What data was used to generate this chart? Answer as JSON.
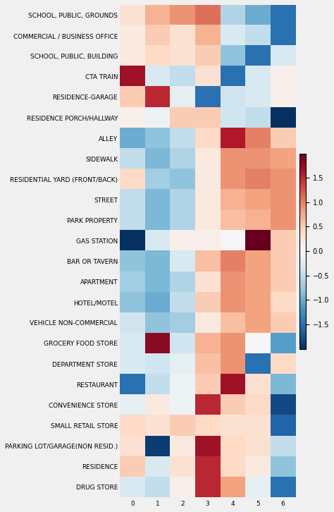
{
  "rows": [
    "SCHOOL, PUBLIC, GROUNDS",
    "COMMERCIAL / BUSINESS OFFICE",
    "SCHOOL, PUBLIC, BUILDING",
    "CTA TRAIN",
    "RESIDENCE-GARAGE",
    "RESIDENCE PORCH/HALLWAY",
    "ALLEY",
    "SIDEWALK",
    "RESIDENTIAL YARD (FRONT/BACK)",
    "STREET",
    "PARK PROPERTY",
    "GAS STATION",
    "BAR OR TAVERN",
    "APARTMENT",
    "HOTEL/MOTEL",
    "VEHICLE NON-COMMERCIAL",
    "GROCERY FOOD STORE",
    "DEPARTMENT STORE",
    "RESTAURANT",
    "CONVENIENCE STORE",
    "SMALL RETAIL STORE",
    "PARKING LOT/GARAGE(NON RESID.)",
    "RESIDENCE",
    "DRUG STORE"
  ],
  "cols": [
    0,
    1,
    2,
    3,
    4,
    5,
    6
  ],
  "data": [
    [
      0.3,
      0.7,
      0.9,
      1.1,
      -0.6,
      -1.0,
      -1.5
    ],
    [
      0.2,
      0.5,
      0.3,
      0.7,
      -0.3,
      -0.5,
      -1.5
    ],
    [
      0.2,
      0.4,
      0.3,
      0.5,
      -0.8,
      -1.5,
      -0.3
    ],
    [
      1.7,
      -0.3,
      -0.5,
      0.3,
      -1.5,
      -0.3,
      0.1
    ],
    [
      0.5,
      1.5,
      -0.2,
      -1.5,
      -0.4,
      -0.3,
      0.1
    ],
    [
      0.1,
      -0.1,
      0.5,
      0.5,
      -0.4,
      -0.5,
      -2.0
    ],
    [
      -1.0,
      -0.8,
      -0.5,
      0.4,
      1.6,
      1.0,
      0.5
    ],
    [
      -0.5,
      -0.9,
      -0.6,
      0.2,
      0.9,
      0.9,
      0.8
    ],
    [
      0.4,
      -0.7,
      -0.8,
      0.2,
      0.9,
      1.0,
      0.9
    ],
    [
      -0.5,
      -0.9,
      -0.6,
      0.2,
      0.7,
      0.8,
      0.9
    ],
    [
      -0.5,
      -0.9,
      -0.6,
      0.2,
      0.6,
      0.7,
      0.9
    ],
    [
      -2.0,
      -0.3,
      0.1,
      0.1,
      0.0,
      2.0,
      0.5
    ],
    [
      -0.8,
      -0.9,
      -0.3,
      0.6,
      1.0,
      0.8,
      0.5
    ],
    [
      -0.7,
      -0.9,
      -0.6,
      0.3,
      0.9,
      0.8,
      0.5
    ],
    [
      -0.8,
      -1.0,
      -0.5,
      0.5,
      0.9,
      0.8,
      0.4
    ],
    [
      -0.4,
      -0.8,
      -0.7,
      0.2,
      0.6,
      0.8,
      0.5
    ],
    [
      -0.3,
      1.8,
      -0.4,
      0.7,
      0.9,
      0.0,
      -1.1
    ],
    [
      -0.3,
      -0.4,
      -0.2,
      0.6,
      0.9,
      -1.5,
      0.4
    ],
    [
      -1.5,
      -0.5,
      -0.1,
      0.5,
      1.7,
      0.3,
      -0.9
    ],
    [
      -0.2,
      0.2,
      -0.1,
      1.5,
      0.5,
      0.4,
      -1.8
    ],
    [
      0.4,
      0.3,
      0.5,
      0.4,
      0.3,
      0.3,
      -1.6
    ],
    [
      0.3,
      -1.9,
      0.2,
      1.7,
      0.4,
      0.3,
      -0.5
    ],
    [
      0.5,
      -0.3,
      0.3,
      1.5,
      0.4,
      0.2,
      -0.8
    ],
    [
      -0.3,
      -0.5,
      0.1,
      1.5,
      0.8,
      -0.2,
      -1.5
    ]
  ],
  "vmin": -2.0,
  "vmax": 2.0,
  "cbar_ticks": [
    1.5,
    1.0,
    0.5,
    0.0,
    -0.5,
    -1.0,
    -1.5
  ],
  "background_color": "#f0f0f0",
  "tick_fontsize": 6.5,
  "cbar_fontsize": 7.0
}
